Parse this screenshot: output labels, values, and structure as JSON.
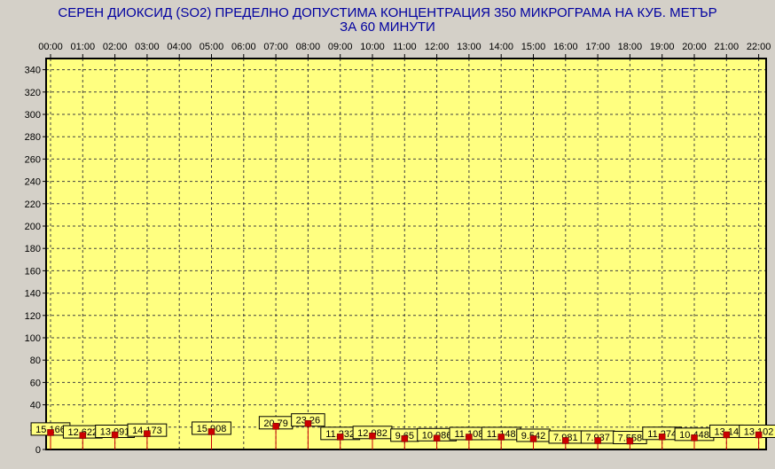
{
  "title_line1": "СЕРЕН ДИОКСИД  (SO2)  ПРЕДЕЛНО ДОПУСТИМА КОНЦЕНТРАЦИЯ 350 МИКРОГРАМА  НА КУБ. МЕТЪР",
  "title_line2": "ЗА 60 МИНУТИ",
  "colors": {
    "plot_background": "#ffff80",
    "window_background": "#d4d0c8",
    "title": "#0000a0",
    "marker": "#cc0000",
    "grid": "#404040"
  },
  "chart_data": {
    "type": "scatter",
    "title": "СЕРЕН ДИОКСИД  (SO2)  ПРЕДЕЛНО ДОПУСТИМА КОНЦЕНТРАЦИЯ 350 МИКРОГРАМА  НА КУБ. МЕТЪР",
    "subtitle": "ЗА 60 МИНУТИ",
    "xlabel": "",
    "ylabel": "",
    "x_ticks": [
      "00:00",
      "01:00",
      "02:00",
      "03:00",
      "04:00",
      "05:00",
      "06:00",
      "07:00",
      "08:00",
      "09:00",
      "10:00",
      "11:00",
      "12:00",
      "13:00",
      "14:00",
      "15:00",
      "16:00",
      "17:00",
      "18:00",
      "19:00",
      "20:00",
      "21:00",
      "22:00"
    ],
    "y_ticks": [
      0,
      20,
      40,
      60,
      80,
      100,
      120,
      140,
      160,
      180,
      200,
      220,
      240,
      260,
      280,
      300,
      320,
      340
    ],
    "ylim": [
      0,
      350
    ],
    "grid": true,
    "points": [
      {
        "x": "00:00",
        "y": 15.166,
        "label": "15.166"
      },
      {
        "x": "01:00",
        "y": 12.622,
        "label": "12.622"
      },
      {
        "x": "02:00",
        "y": 13.091,
        "label": "13.091"
      },
      {
        "x": "03:00",
        "y": 14.173,
        "label": "14.173"
      },
      {
        "x": "05:00",
        "y": 15.908,
        "label": "15.908"
      },
      {
        "x": "07:00",
        "y": 20.79,
        "label": "20.79"
      },
      {
        "x": "08:00",
        "y": 23.26,
        "label": "23.26"
      },
      {
        "x": "09:00",
        "y": 11.232,
        "label": "11.232"
      },
      {
        "x": "10:00",
        "y": 12.082,
        "label": "12.082"
      },
      {
        "x": "11:00",
        "y": 9.65,
        "label": "9.65"
      },
      {
        "x": "12:00",
        "y": 10.086,
        "label": "10.086"
      },
      {
        "x": "13:00",
        "y": 11.108,
        "label": "11.108"
      },
      {
        "x": "14:00",
        "y": 11.148,
        "label": "11.148"
      },
      {
        "x": "15:00",
        "y": 9.542,
        "label": "9.542"
      },
      {
        "x": "16:00",
        "y": 7.981,
        "label": "7.981"
      },
      {
        "x": "17:00",
        "y": 7.937,
        "label": "7.937"
      },
      {
        "x": "18:00",
        "y": 7.558,
        "label": "7.558"
      },
      {
        "x": "19:00",
        "y": 11.274,
        "label": "11.274"
      },
      {
        "x": "20:00",
        "y": 10.448,
        "label": "10.448"
      },
      {
        "x": "21:00",
        "y": 13.14,
        "label": "13.14"
      },
      {
        "x": "22:00",
        "y": 13.102,
        "label": "13.102"
      }
    ]
  }
}
